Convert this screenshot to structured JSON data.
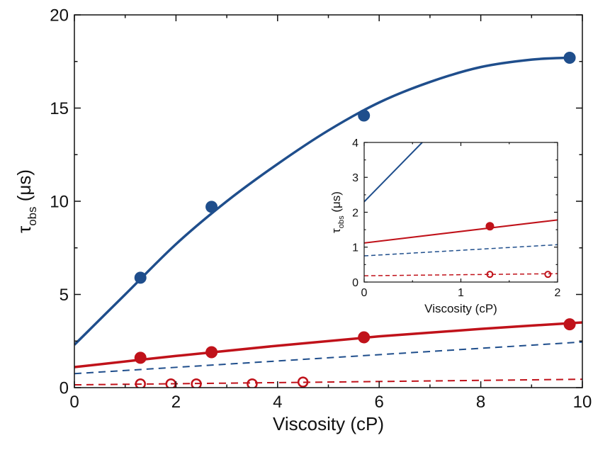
{
  "chart_data": [
    {
      "type": "scatter",
      "xlabel": "Viscosity (cP)",
      "ylabel": "τobs (μs)",
      "ylabel_main": "τ",
      "ylabel_sub": "obs",
      "ylabel_unit": "(μs)",
      "xlim": [
        0,
        10
      ],
      "ylim": [
        0,
        20
      ],
      "xticks": [
        "0",
        "2",
        "4",
        "6",
        "8",
        "10"
      ],
      "yticks": [
        "0",
        "5",
        "10",
        "15",
        "20"
      ],
      "grid": false,
      "series": [
        {
          "style": "filled-point",
          "color": "#1f4e8c",
          "x": [
            1.3,
            2.7,
            5.7,
            9.75
          ],
          "y": [
            5.9,
            9.7,
            14.6,
            17.7
          ]
        },
        {
          "style": "solid-line",
          "color": "#1f4e8c",
          "x": [
            0,
            1,
            2,
            3,
            4,
            5,
            6,
            7,
            8,
            9,
            9.75
          ],
          "y": [
            2.3,
            5.0,
            7.7,
            10.0,
            12.0,
            13.8,
            15.3,
            16.4,
            17.2,
            17.6,
            17.7
          ]
        },
        {
          "style": "filled-point",
          "color": "#c0121a",
          "x": [
            1.3,
            2.7,
            5.7,
            9.75
          ],
          "y": [
            1.6,
            1.9,
            2.7,
            3.4
          ]
        },
        {
          "style": "solid-line",
          "color": "#c0121a",
          "x": [
            0,
            2,
            4,
            6,
            8,
            10
          ],
          "y": [
            1.1,
            1.7,
            2.25,
            2.75,
            3.15,
            3.5
          ]
        },
        {
          "style": "dashed-line",
          "color": "#1f4e8c",
          "x": [
            0,
            10
          ],
          "y": [
            0.75,
            2.45
          ]
        },
        {
          "style": "open-point",
          "color": "#c0121a",
          "x": [
            1.3,
            1.9,
            2.4,
            3.5,
            4.5
          ],
          "y": [
            0.2,
            0.2,
            0.2,
            0.2,
            0.3
          ]
        },
        {
          "style": "dashed-line",
          "color": "#c0121a",
          "x": [
            0,
            10
          ],
          "y": [
            0.15,
            0.45
          ]
        }
      ]
    },
    {
      "type": "scatter",
      "inset": true,
      "xlabel": "Viscosity (cP)",
      "ylabel": "τobs (μs)",
      "ylabel_main": "τ",
      "ylabel_sub": "obs",
      "ylabel_unit": "(μs)",
      "xlim": [
        0,
        2
      ],
      "ylim": [
        0,
        4
      ],
      "xticks": [
        "0",
        "1",
        "2"
      ],
      "yticks": [
        "0",
        "1",
        "2",
        "3",
        "4"
      ],
      "grid": false,
      "series": [
        {
          "style": "solid-line",
          "color": "#1f4e8c",
          "x": [
            0,
            0.6
          ],
          "y": [
            2.3,
            4.0
          ]
        },
        {
          "style": "solid-line",
          "color": "#c0121a",
          "x": [
            0,
            2
          ],
          "y": [
            1.12,
            1.78
          ]
        },
        {
          "style": "filled-point",
          "color": "#c0121a",
          "x": [
            1.3
          ],
          "y": [
            1.6
          ]
        },
        {
          "style": "dashed-line",
          "color": "#1f4e8c",
          "x": [
            0,
            2
          ],
          "y": [
            0.75,
            1.07
          ]
        },
        {
          "style": "dashed-line",
          "color": "#c0121a",
          "x": [
            0,
            2
          ],
          "y": [
            0.18,
            0.24
          ]
        },
        {
          "style": "open-point",
          "color": "#c0121a",
          "x": [
            1.3,
            1.9
          ],
          "y": [
            0.22,
            0.22
          ]
        }
      ]
    }
  ]
}
